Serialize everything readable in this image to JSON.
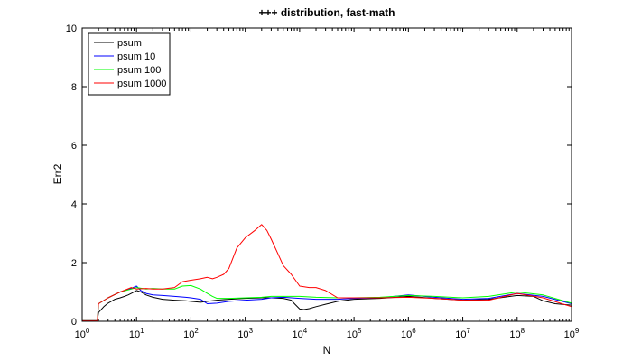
{
  "chart_data": {
    "type": "line",
    "title": "+++ distribution, fast-math",
    "xlabel": "N",
    "ylabel": "Err2",
    "xscale": "log",
    "xlim": [
      1,
      1000000000
    ],
    "ylim": [
      0,
      10
    ],
    "grid": false,
    "legend_position": "top-left",
    "x_ticks": [
      {
        "base": "10",
        "exp": "0"
      },
      {
        "base": "10",
        "exp": "1"
      },
      {
        "base": "10",
        "exp": "2"
      },
      {
        "base": "10",
        "exp": "3"
      },
      {
        "base": "10",
        "exp": "4"
      },
      {
        "base": "10",
        "exp": "5"
      },
      {
        "base": "10",
        "exp": "6"
      },
      {
        "base": "10",
        "exp": "7"
      },
      {
        "base": "10",
        "exp": "8"
      },
      {
        "base": "10",
        "exp": "9"
      }
    ],
    "y_ticks": [
      "0",
      "2",
      "4",
      "6",
      "8",
      "10"
    ],
    "series": [
      {
        "name": "psum",
        "color": "#000000",
        "points": [
          [
            1,
            0.02
          ],
          [
            1.9,
            0.02
          ],
          [
            2,
            0.3
          ],
          [
            2.5,
            0.5
          ],
          [
            3,
            0.62
          ],
          [
            4,
            0.75
          ],
          [
            5,
            0.8
          ],
          [
            6,
            0.85
          ],
          [
            7,
            0.9
          ],
          [
            8,
            0.95
          ],
          [
            10,
            1.05
          ],
          [
            12,
            1.0
          ],
          [
            15,
            0.9
          ],
          [
            20,
            0.82
          ],
          [
            30,
            0.75
          ],
          [
            50,
            0.72
          ],
          [
            80,
            0.7
          ],
          [
            100,
            0.68
          ],
          [
            150,
            0.65
          ],
          [
            200,
            0.68
          ],
          [
            300,
            0.72
          ],
          [
            500,
            0.75
          ],
          [
            1000,
            0.78
          ],
          [
            2000,
            0.8
          ],
          [
            3000,
            0.8
          ],
          [
            5000,
            0.78
          ],
          [
            7000,
            0.72
          ],
          [
            8000,
            0.6
          ],
          [
            10000,
            0.42
          ],
          [
            12000,
            0.4
          ],
          [
            15000,
            0.43
          ],
          [
            20000,
            0.5
          ],
          [
            30000,
            0.58
          ],
          [
            50000,
            0.68
          ],
          [
            100000,
            0.75
          ],
          [
            300000,
            0.78
          ],
          [
            1000000,
            0.85
          ],
          [
            3000000,
            0.78
          ],
          [
            10000000,
            0.72
          ],
          [
            30000000,
            0.75
          ],
          [
            100000000,
            0.88
          ],
          [
            200000000,
            0.85
          ],
          [
            300000000,
            0.7
          ],
          [
            500000000,
            0.6
          ],
          [
            1000000000,
            0.55
          ]
        ]
      },
      {
        "name": "psum 10",
        "color": "#0000ff",
        "points": [
          [
            1,
            0.02
          ],
          [
            1.9,
            0.02
          ],
          [
            2,
            0.6
          ],
          [
            3,
            0.8
          ],
          [
            5,
            1.0
          ],
          [
            8,
            1.12
          ],
          [
            10,
            1.2
          ],
          [
            12,
            1.05
          ],
          [
            15,
            0.95
          ],
          [
            20,
            0.9
          ],
          [
            30,
            0.88
          ],
          [
            50,
            0.85
          ],
          [
            80,
            0.82
          ],
          [
            100,
            0.8
          ],
          [
            150,
            0.75
          ],
          [
            200,
            0.6
          ],
          [
            300,
            0.62
          ],
          [
            500,
            0.68
          ],
          [
            1000,
            0.72
          ],
          [
            2000,
            0.75
          ],
          [
            3000,
            0.8
          ],
          [
            5000,
            0.82
          ],
          [
            10000,
            0.78
          ],
          [
            20000,
            0.75
          ],
          [
            50000,
            0.75
          ],
          [
            100000,
            0.78
          ],
          [
            300000,
            0.8
          ],
          [
            1000000,
            0.9
          ],
          [
            3000000,
            0.82
          ],
          [
            10000000,
            0.75
          ],
          [
            30000000,
            0.78
          ],
          [
            100000000,
            0.95
          ],
          [
            300000000,
            0.85
          ],
          [
            1000000000,
            0.6
          ]
        ]
      },
      {
        "name": "psum 100",
        "color": "#00ff00",
        "points": [
          [
            1,
            0.02
          ],
          [
            1.9,
            0.02
          ],
          [
            2,
            0.6
          ],
          [
            3,
            0.8
          ],
          [
            5,
            1.0
          ],
          [
            8,
            1.1
          ],
          [
            10,
            1.15
          ],
          [
            15,
            1.1
          ],
          [
            20,
            1.12
          ],
          [
            30,
            1.1
          ],
          [
            50,
            1.1
          ],
          [
            70,
            1.2
          ],
          [
            100,
            1.22
          ],
          [
            150,
            1.1
          ],
          [
            200,
            0.95
          ],
          [
            250,
            0.85
          ],
          [
            300,
            0.78
          ],
          [
            500,
            0.78
          ],
          [
            1000,
            0.8
          ],
          [
            2000,
            0.82
          ],
          [
            3000,
            0.85
          ],
          [
            5000,
            0.85
          ],
          [
            10000,
            0.85
          ],
          [
            20000,
            0.82
          ],
          [
            50000,
            0.8
          ],
          [
            100000,
            0.8
          ],
          [
            300000,
            0.82
          ],
          [
            1000000,
            0.88
          ],
          [
            3000000,
            0.85
          ],
          [
            10000000,
            0.8
          ],
          [
            30000000,
            0.85
          ],
          [
            100000000,
            1.0
          ],
          [
            300000000,
            0.9
          ],
          [
            1000000000,
            0.62
          ]
        ]
      },
      {
        "name": "psum 1000",
        "color": "#ff0000",
        "points": [
          [
            1,
            0.02
          ],
          [
            1.9,
            0.02
          ],
          [
            2,
            0.6
          ],
          [
            3,
            0.8
          ],
          [
            5,
            1.0
          ],
          [
            8,
            1.15
          ],
          [
            10,
            1.1
          ],
          [
            15,
            1.12
          ],
          [
            20,
            1.1
          ],
          [
            30,
            1.1
          ],
          [
            50,
            1.15
          ],
          [
            70,
            1.35
          ],
          [
            100,
            1.4
          ],
          [
            150,
            1.45
          ],
          [
            200,
            1.5
          ],
          [
            250,
            1.45
          ],
          [
            300,
            1.5
          ],
          [
            400,
            1.6
          ],
          [
            500,
            1.8
          ],
          [
            700,
            2.5
          ],
          [
            1000,
            2.85
          ],
          [
            1500,
            3.1
          ],
          [
            2000,
            3.3
          ],
          [
            2500,
            3.1
          ],
          [
            3000,
            2.8
          ],
          [
            4000,
            2.3
          ],
          [
            5000,
            1.9
          ],
          [
            7000,
            1.6
          ],
          [
            10000,
            1.2
          ],
          [
            15000,
            1.15
          ],
          [
            20000,
            1.15
          ],
          [
            30000,
            1.05
          ],
          [
            50000,
            0.8
          ],
          [
            100000,
            0.8
          ],
          [
            300000,
            0.8
          ],
          [
            1000000,
            0.82
          ],
          [
            3000000,
            0.78
          ],
          [
            10000000,
            0.72
          ],
          [
            30000000,
            0.72
          ],
          [
            100000000,
            0.95
          ],
          [
            300000000,
            0.8
          ],
          [
            1000000000,
            0.5
          ]
        ]
      }
    ]
  }
}
